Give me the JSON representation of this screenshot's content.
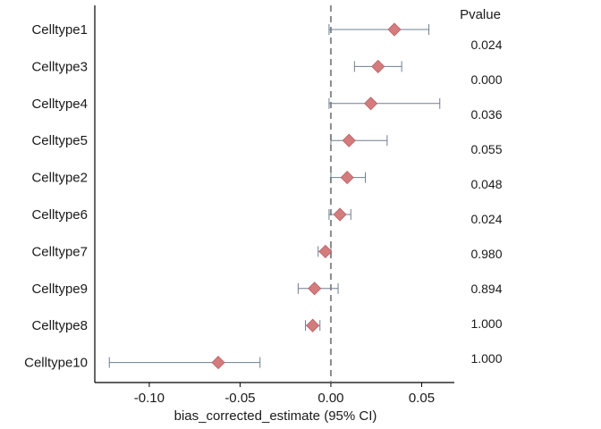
{
  "chart_data": {
    "type": "forest",
    "xlabel": "bias_corrected_estimate (95% CI)",
    "ylabel": "",
    "xlim": [
      -0.13,
      0.068
    ],
    "xticks": [
      -0.1,
      -0.05,
      0.0,
      0.05
    ],
    "xtick_labels": [
      "-0.10",
      "-0.05",
      "0.00",
      "0.05"
    ],
    "reference_line": 0.0,
    "reference_line_style": "dashed",
    "pvalue_header": "Pvalue",
    "marker_shape": "diamond",
    "marker_color": "#D47B7E",
    "ci_color": "#6E7F90",
    "rows": [
      {
        "label": "Celltype1",
        "estimate": 0.035,
        "ci_low": -0.001,
        "ci_high": 0.054,
        "pvalue": "0.024"
      },
      {
        "label": "Celltype3",
        "estimate": 0.026,
        "ci_low": 0.013,
        "ci_high": 0.039,
        "pvalue": "0.000"
      },
      {
        "label": "Celltype4",
        "estimate": 0.022,
        "ci_low": -0.001,
        "ci_high": 0.06,
        "pvalue": "0.036"
      },
      {
        "label": "Celltype5",
        "estimate": 0.01,
        "ci_low": 0.0,
        "ci_high": 0.031,
        "pvalue": "0.055"
      },
      {
        "label": "Celltype2",
        "estimate": 0.009,
        "ci_low": 0.0,
        "ci_high": 0.019,
        "pvalue": "0.048"
      },
      {
        "label": "Celltype6",
        "estimate": 0.005,
        "ci_low": -0.001,
        "ci_high": 0.011,
        "pvalue": "0.024"
      },
      {
        "label": "Celltype7",
        "estimate": -0.003,
        "ci_low": -0.007,
        "ci_high": 0.0,
        "pvalue": "0.980"
      },
      {
        "label": "Celltype9",
        "estimate": -0.009,
        "ci_low": -0.018,
        "ci_high": 0.004,
        "pvalue": "0.894"
      },
      {
        "label": "Celltype8",
        "estimate": -0.01,
        "ci_low": -0.014,
        "ci_high": -0.006,
        "pvalue": "1.000"
      },
      {
        "label": "Celltype10",
        "estimate": -0.062,
        "ci_low": -0.122,
        "ci_high": -0.039,
        "pvalue": "1.000"
      }
    ]
  }
}
